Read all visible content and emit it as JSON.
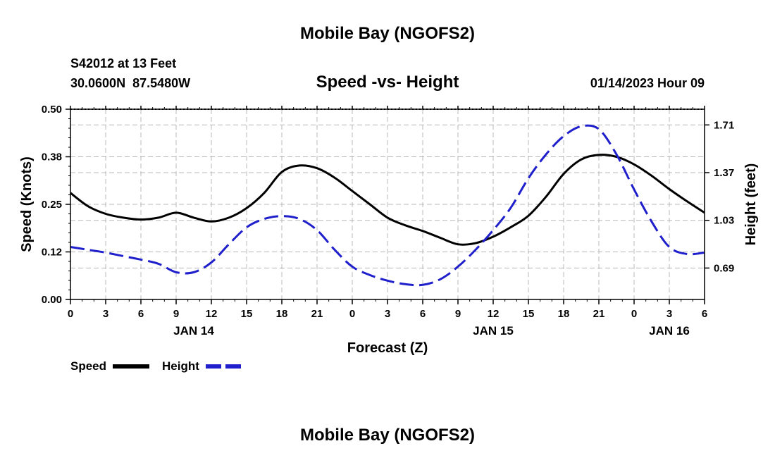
{
  "header": {
    "title": "Mobile Bay (NGOFS2)",
    "station": "S42012 at 13 Feet",
    "coords": "30.0600N  87.5480W",
    "date": "01/14/2023 Hour 09",
    "footer_title": "Mobile Bay (NGOFS2)"
  },
  "chart_data": {
    "type": "line",
    "title": "Speed -vs- Height",
    "xlabel": "Forecast (Z)",
    "ylabel_left": "Speed (Knots)",
    "ylabel_right": "Height (feet)",
    "x_range_hours": [
      0,
      54
    ],
    "y_left_range": [
      0,
      0.5
    ],
    "y_left_ticks": [
      0.0,
      0.125,
      0.25,
      0.375,
      0.5
    ],
    "y_left_tick_labels": [
      "0.00",
      "0.12",
      "0.25",
      "0.38",
      "0.50"
    ],
    "y_right_range": [
      0.466,
      1.822
    ],
    "y_right_ticks": [
      0.69,
      1.03,
      1.37,
      1.71
    ],
    "y_right_tick_labels": [
      "0.69",
      "1.03",
      "1.37",
      "1.71"
    ],
    "x_ticks": [
      0,
      3,
      6,
      9,
      12,
      15,
      18,
      21,
      24,
      27,
      30,
      33,
      36,
      39,
      42,
      45,
      48,
      51,
      54
    ],
    "x_tick_labels": [
      "0",
      "3",
      "6",
      "9",
      "12",
      "15",
      "18",
      "21",
      "0",
      "3",
      "6",
      "9",
      "12",
      "15",
      "18",
      "21",
      "0",
      "3",
      "6"
    ],
    "date_labels": [
      {
        "label": "JAN 14",
        "hour": 10.5
      },
      {
        "label": "JAN 15",
        "hour": 36
      },
      {
        "label": "JAN 16",
        "hour": 51
      }
    ],
    "grid": true,
    "series": [
      {
        "name": "Speed",
        "axis": "left",
        "color": "#000000",
        "style": "solid",
        "x": [
          0,
          1.5,
          3,
          4.5,
          6,
          7.5,
          9,
          10.5,
          12,
          13.5,
          15,
          16.5,
          18,
          19.5,
          21,
          22.5,
          24,
          25.5,
          27,
          28.5,
          30,
          31.5,
          33,
          34.5,
          36,
          37.5,
          39,
          40.5,
          42,
          43.5,
          45,
          46.5,
          48,
          49.5,
          51,
          52.5,
          54
        ],
        "values": [
          0.28,
          0.245,
          0.225,
          0.215,
          0.21,
          0.215,
          0.228,
          0.215,
          0.205,
          0.215,
          0.24,
          0.28,
          0.335,
          0.352,
          0.345,
          0.32,
          0.285,
          0.25,
          0.215,
          0.195,
          0.18,
          0.162,
          0.145,
          0.148,
          0.165,
          0.19,
          0.22,
          0.27,
          0.33,
          0.368,
          0.38,
          0.375,
          0.355,
          0.325,
          0.29,
          0.258,
          0.228
        ]
      },
      {
        "name": "Height",
        "axis": "right",
        "color": "#1f1fcc",
        "style": "dashed",
        "x": [
          0,
          1.5,
          3,
          4.5,
          6,
          7.5,
          9,
          10.5,
          12,
          13.5,
          15,
          16.5,
          18,
          19.5,
          21,
          22.5,
          24,
          25.5,
          27,
          28.5,
          30,
          31.5,
          33,
          34.5,
          36,
          37.5,
          39,
          40.5,
          42,
          43.5,
          45,
          46.5,
          48,
          49.5,
          51,
          52.5,
          54
        ],
        "values": [
          0.84,
          0.82,
          0.8,
          0.775,
          0.75,
          0.72,
          0.66,
          0.66,
          0.73,
          0.86,
          0.98,
          1.04,
          1.06,
          1.04,
          0.96,
          0.82,
          0.7,
          0.64,
          0.6,
          0.575,
          0.57,
          0.61,
          0.7,
          0.82,
          0.96,
          1.12,
          1.33,
          1.5,
          1.63,
          1.7,
          1.68,
          1.5,
          1.25,
          1.02,
          0.84,
          0.79,
          0.8
        ]
      }
    ]
  },
  "legend": {
    "speed_label": "Speed",
    "height_label": "Height"
  }
}
